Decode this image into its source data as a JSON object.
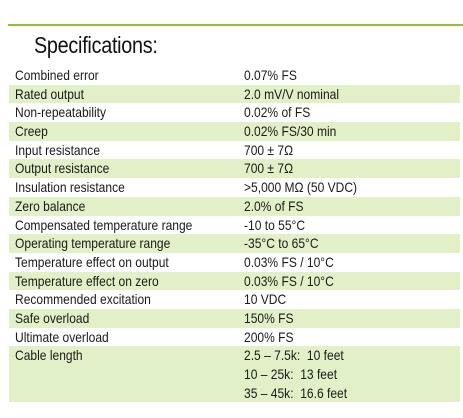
{
  "title": "Specifications:",
  "specs": [
    {
      "name": "Combined error",
      "value": "0.07% FS"
    },
    {
      "name": "Rated output",
      "value": "2.0 mV/V nominal"
    },
    {
      "name": "Non-repeatability",
      "value": "0.02% of FS"
    },
    {
      "name": "Creep",
      "value": "0.02% FS/30 min"
    },
    {
      "name": "Input resistance",
      "value": "700 ± 7Ω"
    },
    {
      "name": "Output resistance",
      "value": "700 ± 7Ω"
    },
    {
      "name": "Insulation resistance",
      "value": ">5,000 MΩ (50 VDC)"
    },
    {
      "name": "Zero balance",
      "value": "2.0% of FS"
    },
    {
      "name": "Compensated temperature range",
      "value": "-10 to 55°C"
    },
    {
      "name": "Operating temperature range",
      "value": "-35°C to 65°C"
    },
    {
      "name": "Temperature effect on output",
      "value": "0.03% FS / 10°C"
    },
    {
      "name": "Temperature effect on zero",
      "value": "0.03% FS / 10°C"
    },
    {
      "name": "Recommended excitation",
      "value": "10 VDC"
    },
    {
      "name": "Safe overload",
      "value": "150% FS"
    },
    {
      "name": "Ultimate overload",
      "value": "200% FS"
    }
  ],
  "cable": {
    "name": "Cable length",
    "values": [
      "2.5 – 7.5k:  10 feet",
      "10 – 25k:  13 feet",
      "35 – 45k:  16.6 feet"
    ]
  },
  "colors": {
    "accent_rule": "#8fc13e",
    "row_shade": "#e2f0c8"
  }
}
